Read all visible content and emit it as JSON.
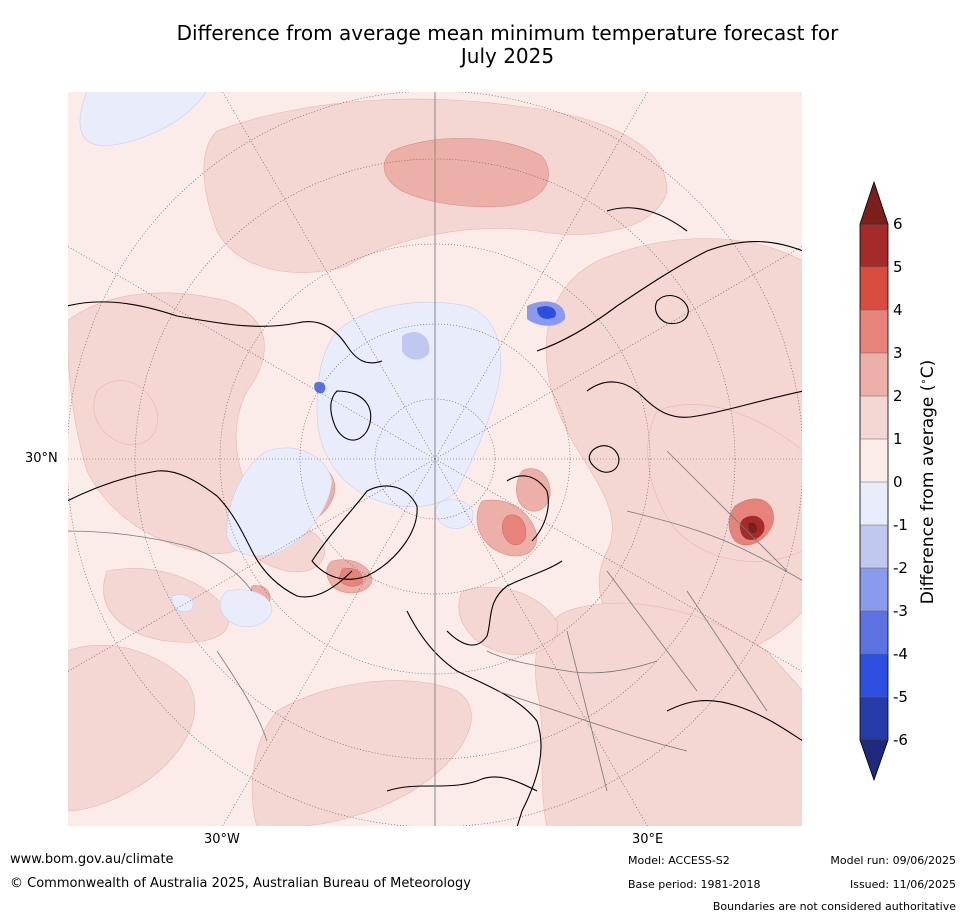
{
  "title_line1": "Difference from average mean minimum temperature forecast for",
  "title_line2": "July 2025",
  "map": {
    "lat_label": "30°N",
    "lon_label_west": "30°W",
    "lon_label_east": "30°E"
  },
  "colorbar": {
    "label": "Difference from average (°C)",
    "label_unit": "°C",
    "ticks": [
      "6",
      "5",
      "4",
      "3",
      "2",
      "1",
      "0",
      "-1",
      "-2",
      "-3",
      "-4",
      "-5",
      "-6"
    ],
    "colors": [
      "#a52a2a",
      "#d94c40",
      "#e6837a",
      "#edb0a8",
      "#f4d6d2",
      "#fbece9",
      "#e8ecfb",
      "#c0c8f0",
      "#8a9aec",
      "#5b72e0",
      "#2d4fe0",
      "#243ba8"
    ],
    "extend_max_color": "#7a1f1a",
    "extend_min_color": "#1e2a7d"
  },
  "footer": {
    "website": "www.bom.gov.au/climate",
    "copyright": "© Commonwealth of Australia 2025, Australian Bureau of Meteorology",
    "model": "Model: ACCESS-S2",
    "base_period": "Base period: 1981-2018",
    "model_run": "Model run: 09/06/2025",
    "issued": "Issued: 11/06/2025",
    "disclaimer": "Boundaries are not considered authoritative"
  }
}
